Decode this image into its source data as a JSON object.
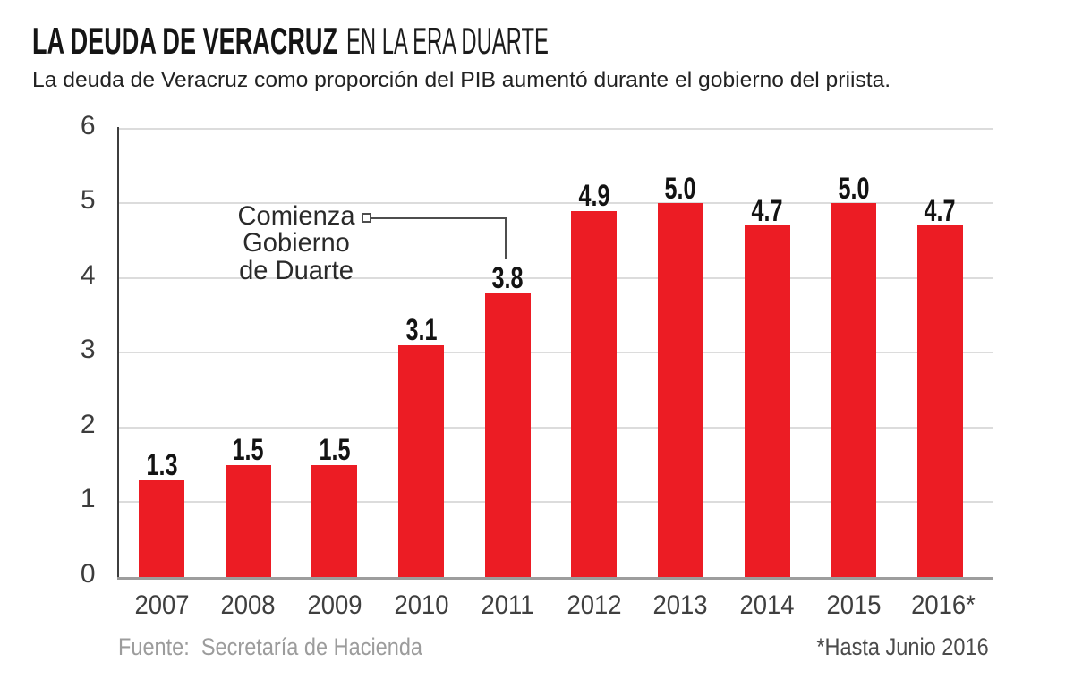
{
  "page": {
    "background": "#ffffff"
  },
  "header": {
    "title_strong": "LA DEUDA DE VERACRUZ",
    "title_light": "EN LA ERA DUARTE",
    "subtitle": "La deuda de Veracruz como proporción del PIB aumentó durante el gobierno del priista."
  },
  "chart_data": {
    "type": "bar",
    "categories": [
      "2007",
      "2008",
      "2009",
      "2010",
      "2011",
      "2012",
      "2013",
      "2014",
      "2015",
      "2016*"
    ],
    "values": [
      1.3,
      1.5,
      1.5,
      3.1,
      3.8,
      4.9,
      5.0,
      4.7,
      5.0,
      4.7
    ],
    "title": "LA DEUDA DE VERACRUZ EN LA ERA DUARTE",
    "xlabel": "",
    "ylabel": "",
    "ylim": [
      0,
      6
    ],
    "y_ticks": [
      0,
      1,
      2,
      3,
      4,
      5,
      6
    ],
    "grid": true,
    "bar_color": "#ec1c24",
    "annotation": {
      "lines": [
        "Comienza",
        "Gobierno",
        "de Duarte"
      ],
      "target_category": "2011"
    }
  },
  "footer": {
    "source": "Fuente:  Secretaría de Hacienda",
    "note": "*Hasta Junio 2016"
  }
}
